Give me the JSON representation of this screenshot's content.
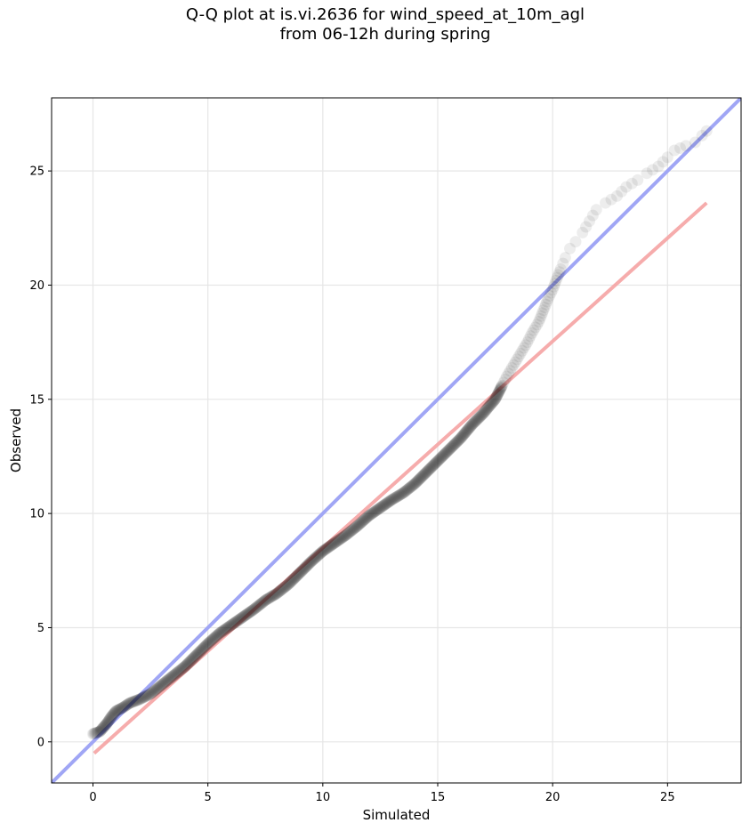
{
  "chart_data": {
    "type": "scatter",
    "title_line1": "Q-Q plot at is.vi.2636 for wind_speed_at_10m_agl",
    "title_line2": "from 06-12h during spring",
    "xlabel": "Simulated",
    "ylabel": "Observed",
    "xlim": [
      -1.8,
      28.2
    ],
    "ylim": [
      -1.8,
      28.2
    ],
    "xticks": [
      0,
      5,
      10,
      15,
      20,
      25
    ],
    "yticks": [
      0,
      5,
      10,
      15,
      20,
      25
    ],
    "grid": true,
    "reference_line": {
      "name": "1:1 line",
      "color": "#a0a6f5",
      "from": [
        -1.8,
        -1.8
      ],
      "to": [
        28.2,
        28.2
      ]
    },
    "fit_line": {
      "name": "fit line",
      "color": "#f5a3a3",
      "from": [
        0.05,
        -0.5
      ],
      "to": [
        26.7,
        23.6
      ]
    },
    "points_color": "#000000",
    "quantiles": [
      [
        0.0,
        0.35
      ],
      [
        0.3,
        0.45
      ],
      [
        0.6,
        0.8
      ],
      [
        0.8,
        1.1
      ],
      [
        1.0,
        1.35
      ],
      [
        1.3,
        1.5
      ],
      [
        1.6,
        1.7
      ],
      [
        2.0,
        1.85
      ],
      [
        2.5,
        2.1
      ],
      [
        3.0,
        2.5
      ],
      [
        3.5,
        2.9
      ],
      [
        4.0,
        3.3
      ],
      [
        4.5,
        3.8
      ],
      [
        5.0,
        4.3
      ],
      [
        5.5,
        4.75
      ],
      [
        6.0,
        5.1
      ],
      [
        6.5,
        5.45
      ],
      [
        7.0,
        5.8
      ],
      [
        7.5,
        6.2
      ],
      [
        8.0,
        6.5
      ],
      [
        8.5,
        6.9
      ],
      [
        9.0,
        7.4
      ],
      [
        9.5,
        7.9
      ],
      [
        10.0,
        8.35
      ],
      [
        10.5,
        8.7
      ],
      [
        11.0,
        9.05
      ],
      [
        11.5,
        9.45
      ],
      [
        12.0,
        9.9
      ],
      [
        12.5,
        10.25
      ],
      [
        13.0,
        10.6
      ],
      [
        13.5,
        10.9
      ],
      [
        14.0,
        11.3
      ],
      [
        14.5,
        11.8
      ],
      [
        15.0,
        12.3
      ],
      [
        15.5,
        12.8
      ],
      [
        16.0,
        13.3
      ],
      [
        16.5,
        13.9
      ],
      [
        17.0,
        14.4
      ],
      [
        17.2,
        14.65
      ],
      [
        17.5,
        15.0
      ],
      [
        17.8,
        15.6
      ],
      [
        18.0,
        16.0
      ],
      [
        18.3,
        16.5
      ],
      [
        18.6,
        17.0
      ],
      [
        18.9,
        17.5
      ],
      [
        19.1,
        17.9
      ],
      [
        19.4,
        18.4
      ],
      [
        19.6,
        18.9
      ],
      [
        19.8,
        19.4
      ],
      [
        20.0,
        19.8
      ],
      [
        20.15,
        20.2
      ],
      [
        20.35,
        20.7
      ],
      [
        20.55,
        21.2
      ],
      [
        20.75,
        21.6
      ],
      [
        21.0,
        21.9
      ],
      [
        21.3,
        22.3
      ],
      [
        21.6,
        22.8
      ],
      [
        21.9,
        23.3
      ],
      [
        22.3,
        23.6
      ],
      [
        22.8,
        23.9
      ],
      [
        23.2,
        24.3
      ],
      [
        23.7,
        24.6
      ],
      [
        24.1,
        24.9
      ],
      [
        24.6,
        25.2
      ],
      [
        25.0,
        25.6
      ],
      [
        25.3,
        25.9
      ],
      [
        25.8,
        26.1
      ],
      [
        26.2,
        26.25
      ],
      [
        26.5,
        26.55
      ],
      [
        26.7,
        26.75
      ]
    ]
  }
}
